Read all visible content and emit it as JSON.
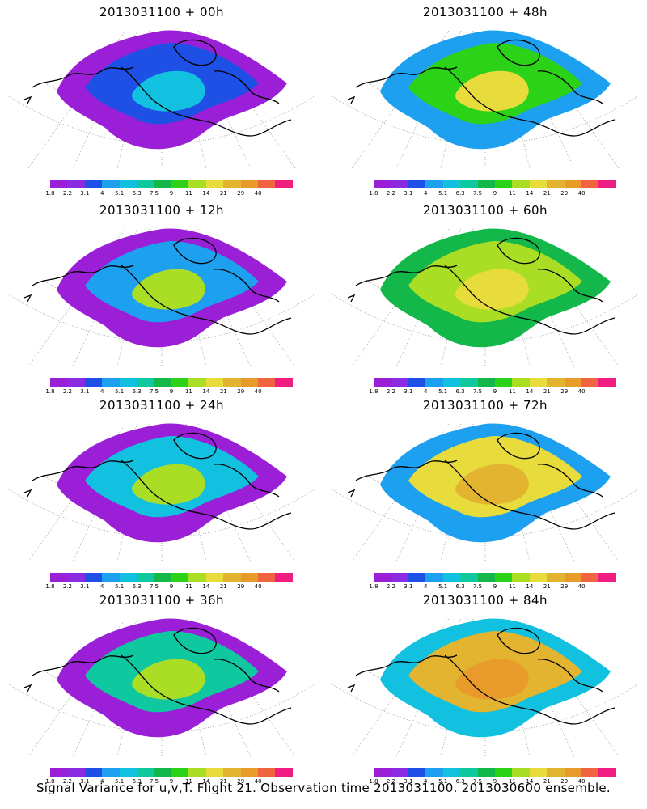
{
  "panels": [
    {
      "title": "2013031100 + 00h",
      "lead": "00h"
    },
    {
      "title": "2013031100 + 48h",
      "lead": "48h"
    },
    {
      "title": "2013031100 + 12h",
      "lead": "12h"
    },
    {
      "title": "2013031100 + 60h",
      "lead": "60h"
    },
    {
      "title": "2013031100 + 24h",
      "lead": "24h"
    },
    {
      "title": "2013031100 + 72h",
      "lead": "72h"
    },
    {
      "title": "2013031100 + 36h",
      "lead": "36h"
    },
    {
      "title": "2013031100 + 84h",
      "lead": "84h"
    }
  ],
  "colorbar": {
    "labels": [
      "1.8",
      "2.2",
      "3.1",
      "4",
      "5.1",
      "6.3",
      "7.5",
      "9",
      "11",
      "14",
      "21",
      "29",
      "40"
    ],
    "colors": [
      "#9a1fd6",
      "#8a2be2",
      "#1e50e6",
      "#1ea0f0",
      "#12c0e0",
      "#10c8a0",
      "#14b84a",
      "#2cd218",
      "#aade24",
      "#e8dc3c",
      "#e2b430",
      "#e89a2a",
      "#f06440",
      "#f01e82"
    ]
  },
  "caption": "Signal Variance for u,v,T. Flight 21. Observation time 2013031100. 2013030600 ensemble."
}
